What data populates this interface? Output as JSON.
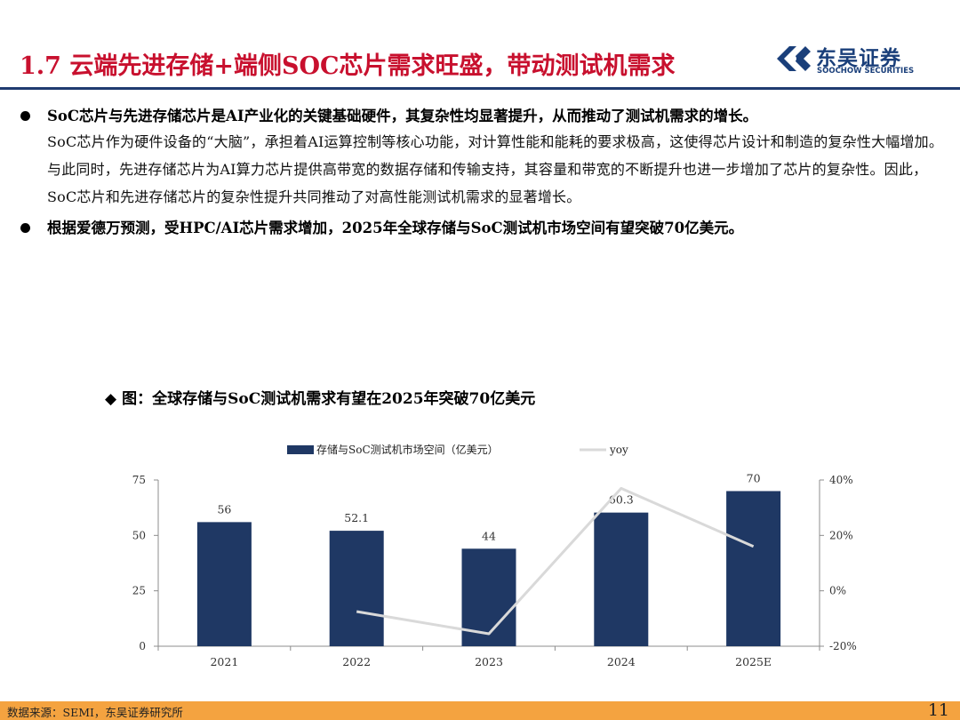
{
  "header": {
    "title": "1.7 云端先进存储+端侧SOC芯片需求旺盛，带动测试机需求",
    "logo_cn": "东吴证券",
    "logo_en": "SOOCHOW SECURITIES",
    "accent_color": "#c8102e",
    "brand_color": "#1f3b70"
  },
  "bullets": [
    {
      "heading": "SoC芯片与先进存储芯片是AI产业化的关键基础硬件，其复杂性均显著提升，从而推动了测试机需求的增长。",
      "body": "SoC芯片作为硬件设备的“大脑”，承担着AI运算控制等核心功能，对计算性能和能耗的要求极高，这使得芯片设计和制造的复杂性大幅增加。与此同时，先进存储芯片为AI算力芯片提供高带宽的数据存储和传输支持，其容量和带宽的不断提升也进一步增加了芯片的复杂性。因此，SoC芯片和先进存储芯片的复杂性提升共同推动了对高性能测试机需求的显著增长。"
    },
    {
      "heading": "根据爱德万预测，受HPC/AI芯片需求增加，2025年全球存储与SoC测试机市场空间有望突破70亿美元。",
      "body": ""
    }
  ],
  "chart_caption": {
    "marker": "◆",
    "text": "图：全球存储与SoC测试机需求有望在2025年突破70亿美元"
  },
  "chart_data": {
    "type": "bar",
    "categories": [
      "2021",
      "2022",
      "2023",
      "2024",
      "2025E"
    ],
    "series": [
      {
        "name": "存储与SoC测试机市场空间（亿美元）",
        "type": "bar",
        "axis": "left",
        "values": [
          56,
          52.1,
          44,
          60.3,
          70
        ],
        "labels": [
          "56",
          "52.1",
          "44",
          "60.3",
          "70"
        ],
        "color": "#1f3864"
      },
      {
        "name": "yoy",
        "type": "line",
        "axis": "right",
        "x": [
          "2022",
          "2023",
          "2024",
          "2025E"
        ],
        "values": [
          -7.5,
          -15.5,
          37,
          16
        ],
        "color": "#d9d9d9"
      }
    ],
    "y_left": {
      "min": 0,
      "max": 75,
      "ticks": [
        "0",
        "25",
        "50",
        "75"
      ]
    },
    "y_right": {
      "min": -20,
      "max": 40,
      "ticks": [
        "-20%",
        "0%",
        "20%",
        "40%"
      ]
    },
    "legend_position": "top",
    "grid": false
  },
  "footer": {
    "source": "数据来源：SEMI，东吴证券研究所",
    "page": "11",
    "color": "#f4a340"
  }
}
